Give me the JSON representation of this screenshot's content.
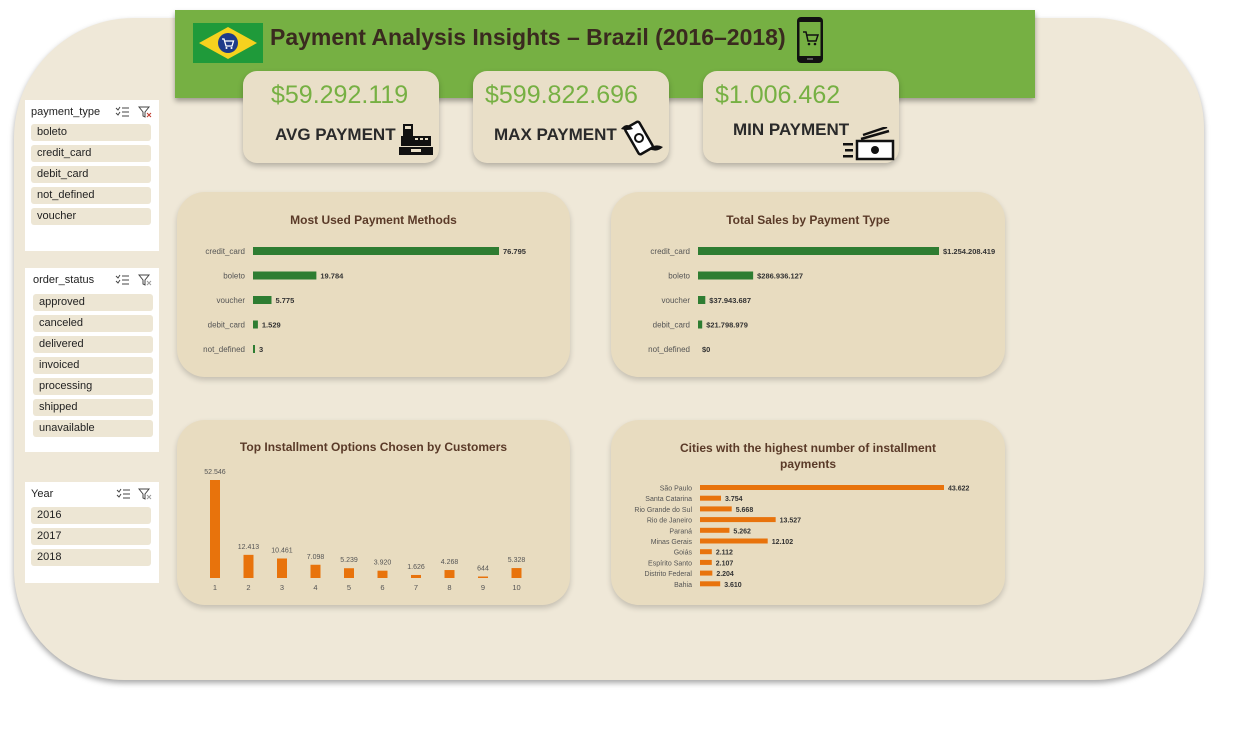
{
  "header": {
    "title": "Payment Analysis Insights – Brazil (2016–2018)",
    "flag_color": "#2e9a3c",
    "bg_color": "#76b043"
  },
  "kpis": [
    {
      "value": "$59.292.119",
      "label": "AVG PAYMENT",
      "icon": "cash-register-icon"
    },
    {
      "value": "$599.822.696",
      "label": "MAX PAYMENT",
      "icon": "flying-money-icon"
    },
    {
      "value": "$1.006.462",
      "label": "MIN PAYMENT",
      "icon": "cash-stack-icon"
    }
  ],
  "slicers": {
    "payment_type": {
      "title": "payment_type",
      "items": [
        "boleto",
        "credit_card",
        "debit_card",
        "not_defined",
        "voucher"
      ]
    },
    "order_status": {
      "title": "order_status",
      "items": [
        "approved",
        "canceled",
        "delivered",
        "invoiced",
        "processing",
        "shipped",
        "unavailable"
      ]
    },
    "year": {
      "title": "Year",
      "items": [
        "2016",
        "2017",
        "2018"
      ]
    }
  },
  "chart_data": [
    {
      "type": "bar",
      "orientation": "horizontal",
      "title": "Most Used Payment Methods",
      "categories": [
        "credit_card",
        "boleto",
        "voucher",
        "debit_card",
        "not_defined"
      ],
      "values": [
        76795,
        19784,
        5775,
        1529,
        3
      ],
      "labels": [
        "76.795",
        "19.784",
        "5.775",
        "1.529",
        "3"
      ],
      "color": "#2e7d32"
    },
    {
      "type": "bar",
      "orientation": "horizontal",
      "title": "Total Sales by Payment Type",
      "categories": [
        "credit_card",
        "boleto",
        "voucher",
        "debit_card",
        "not_defined"
      ],
      "values": [
        1254208419,
        286936127,
        37943687,
        21798979,
        0
      ],
      "labels": [
        "$1.254.208.419",
        "$286.936.127",
        "$37.943.687",
        "$21.798.979",
        "$0"
      ],
      "color": "#2e7d32"
    },
    {
      "type": "bar",
      "orientation": "vertical",
      "title": "Top Installment Options Chosen by Customers",
      "categories": [
        "1",
        "2",
        "3",
        "4",
        "5",
        "6",
        "7",
        "8",
        "9",
        "10"
      ],
      "values": [
        52546,
        12413,
        10461,
        7098,
        5239,
        3920,
        1626,
        4268,
        644,
        5328
      ],
      "labels": [
        "52.546",
        "12.413",
        "10.461",
        "7.098",
        "5.239",
        "3.920",
        "1.626",
        "4.268",
        "644",
        "5.328"
      ],
      "color": "#e8730c"
    },
    {
      "type": "bar",
      "orientation": "horizontal",
      "title": "Cities with the highest number of installment payments",
      "categories": [
        "São Paulo",
        "Santa Catarina",
        "Rio Grande do Sul",
        "Rio de Janeiro",
        "Paraná",
        "Minas Gerais",
        "Goiás",
        "Espírito Santo",
        "Distrito Federal",
        "Bahia"
      ],
      "values": [
        43622,
        3754,
        5668,
        13527,
        5262,
        12102,
        2112,
        2107,
        2204,
        3610
      ],
      "labels": [
        "43.622",
        "3.754",
        "5.668",
        "13.527",
        "5.262",
        "12.102",
        "2.112",
        "2.107",
        "2.204",
        "3.610"
      ],
      "color": "#e8730c"
    }
  ]
}
